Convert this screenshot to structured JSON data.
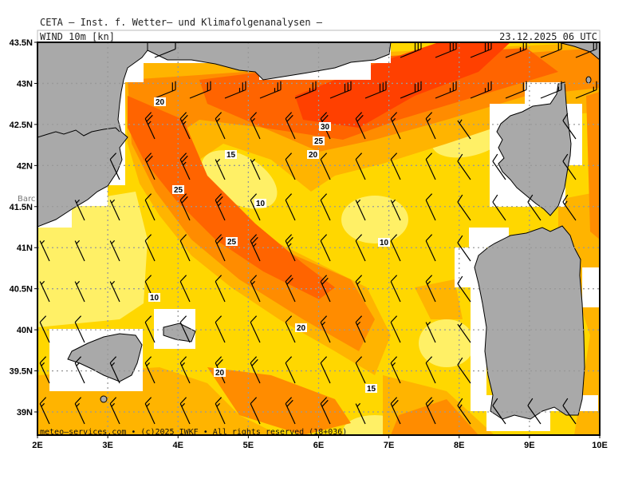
{
  "header": {
    "institute": "CETA — Inst. f. Wetter— und Klimafolgenanalysen —",
    "variable": "WIND_10m_[kn]",
    "datetime": "23.12.2025 06 UTC"
  },
  "footer": {
    "credit": "meteo—services.com • (c)2025 IWKF • All rights reserved (18+036)"
  },
  "axes": {
    "lat_ticks": [
      "43.5N",
      "43N",
      "42.5N",
      "42N",
      "41.5N",
      "41N",
      "40.5N",
      "40N",
      "39.5N",
      "39N"
    ],
    "lon_ticks": [
      "2E",
      "3E",
      "4E",
      "5E",
      "6E",
      "7E",
      "8E",
      "9E",
      "10E"
    ],
    "lon_range": [
      2,
      10
    ],
    "lat_range": [
      38.7,
      43.5
    ]
  },
  "place_labels": [
    "Barc"
  ],
  "contour_labels": [
    "20",
    "30",
    "25",
    "15",
    "20",
    "25",
    "10",
    "10",
    "25",
    "10",
    "20",
    "20",
    "15"
  ],
  "wind_speed_levels_kn": [
    {
      "range": "<10",
      "color": "#fff066"
    },
    {
      "range": "10-15",
      "color": "#ffd700"
    },
    {
      "range": "15-20",
      "color": "#ffb400"
    },
    {
      "range": "20-25",
      "color": "#ff8c00"
    },
    {
      "range": "25-30",
      "color": "#ff6400"
    },
    {
      "range": ">30",
      "color": "#ff4000"
    }
  ],
  "colors": {
    "land": "#a9a9a9",
    "no_data": "#ffffff",
    "grid": "#999999"
  }
}
